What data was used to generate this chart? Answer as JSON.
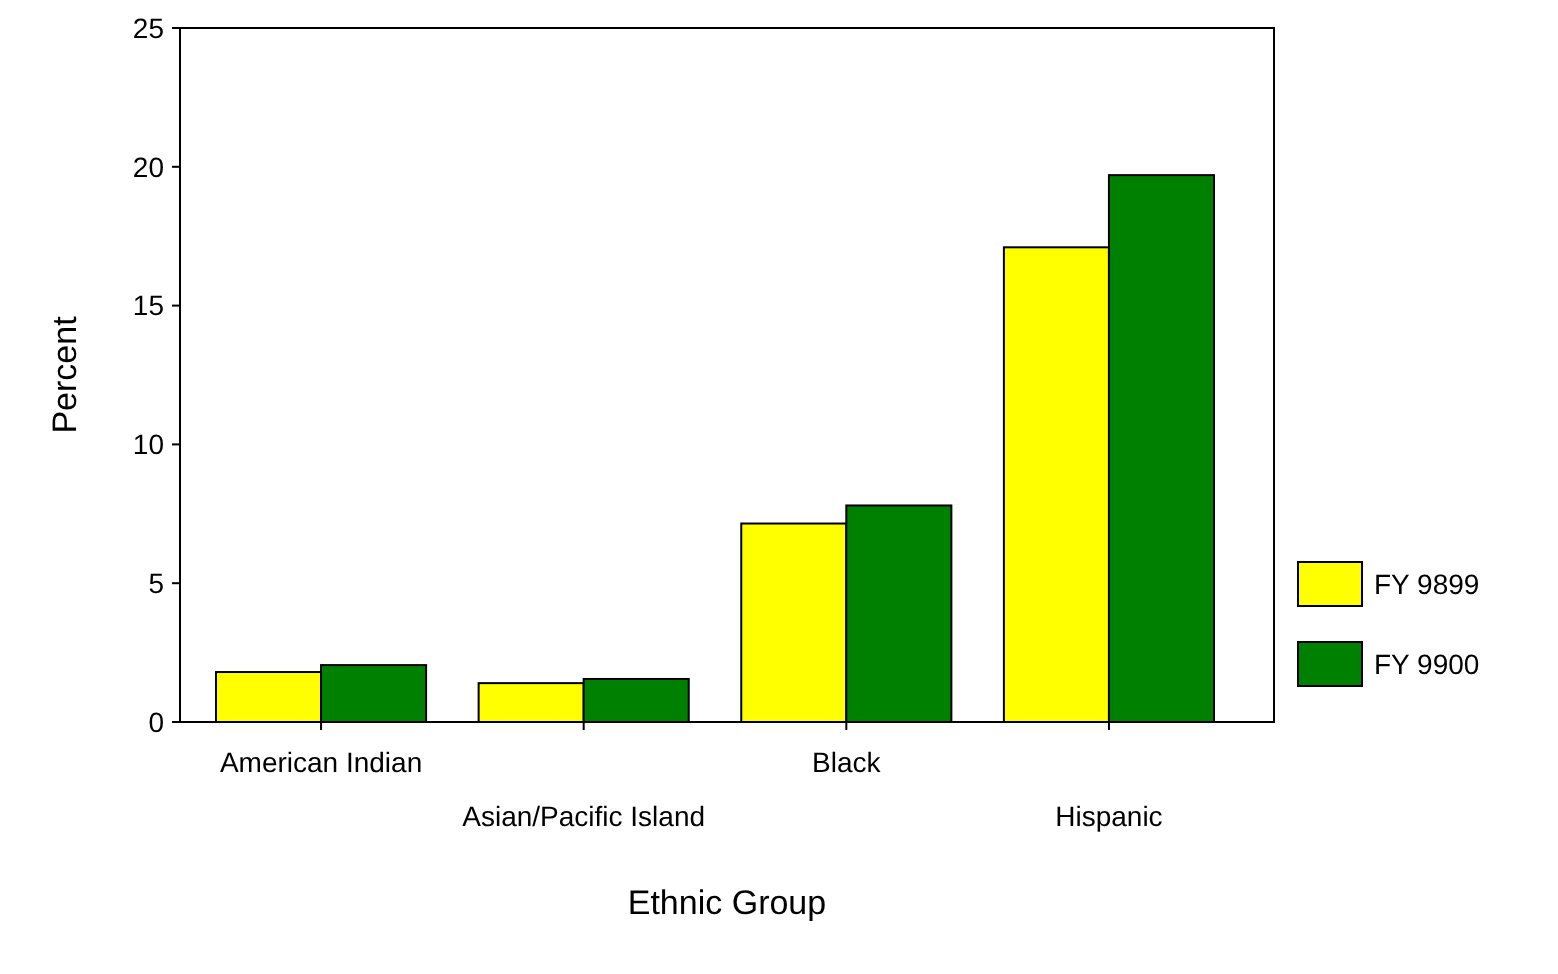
{
  "chart_data": {
    "type": "bar",
    "xlabel": "Ethnic Group",
    "ylabel": "Percent",
    "categories": [
      "American Indian",
      "Asian/Pacific Island",
      "Black",
      "Hispanic"
    ],
    "series": [
      {
        "name": "FY 9899",
        "color": "#ffff00",
        "values": [
          1.8,
          1.4,
          7.15,
          17.1
        ]
      },
      {
        "name": "FY 9900",
        "color": "#008000",
        "values": [
          2.05,
          1.55,
          7.8,
          19.7
        ]
      }
    ],
    "ylim": [
      0,
      25
    ],
    "yticks": [
      0,
      5,
      10,
      15,
      20,
      25
    ],
    "grid": false,
    "legend": "right"
  }
}
